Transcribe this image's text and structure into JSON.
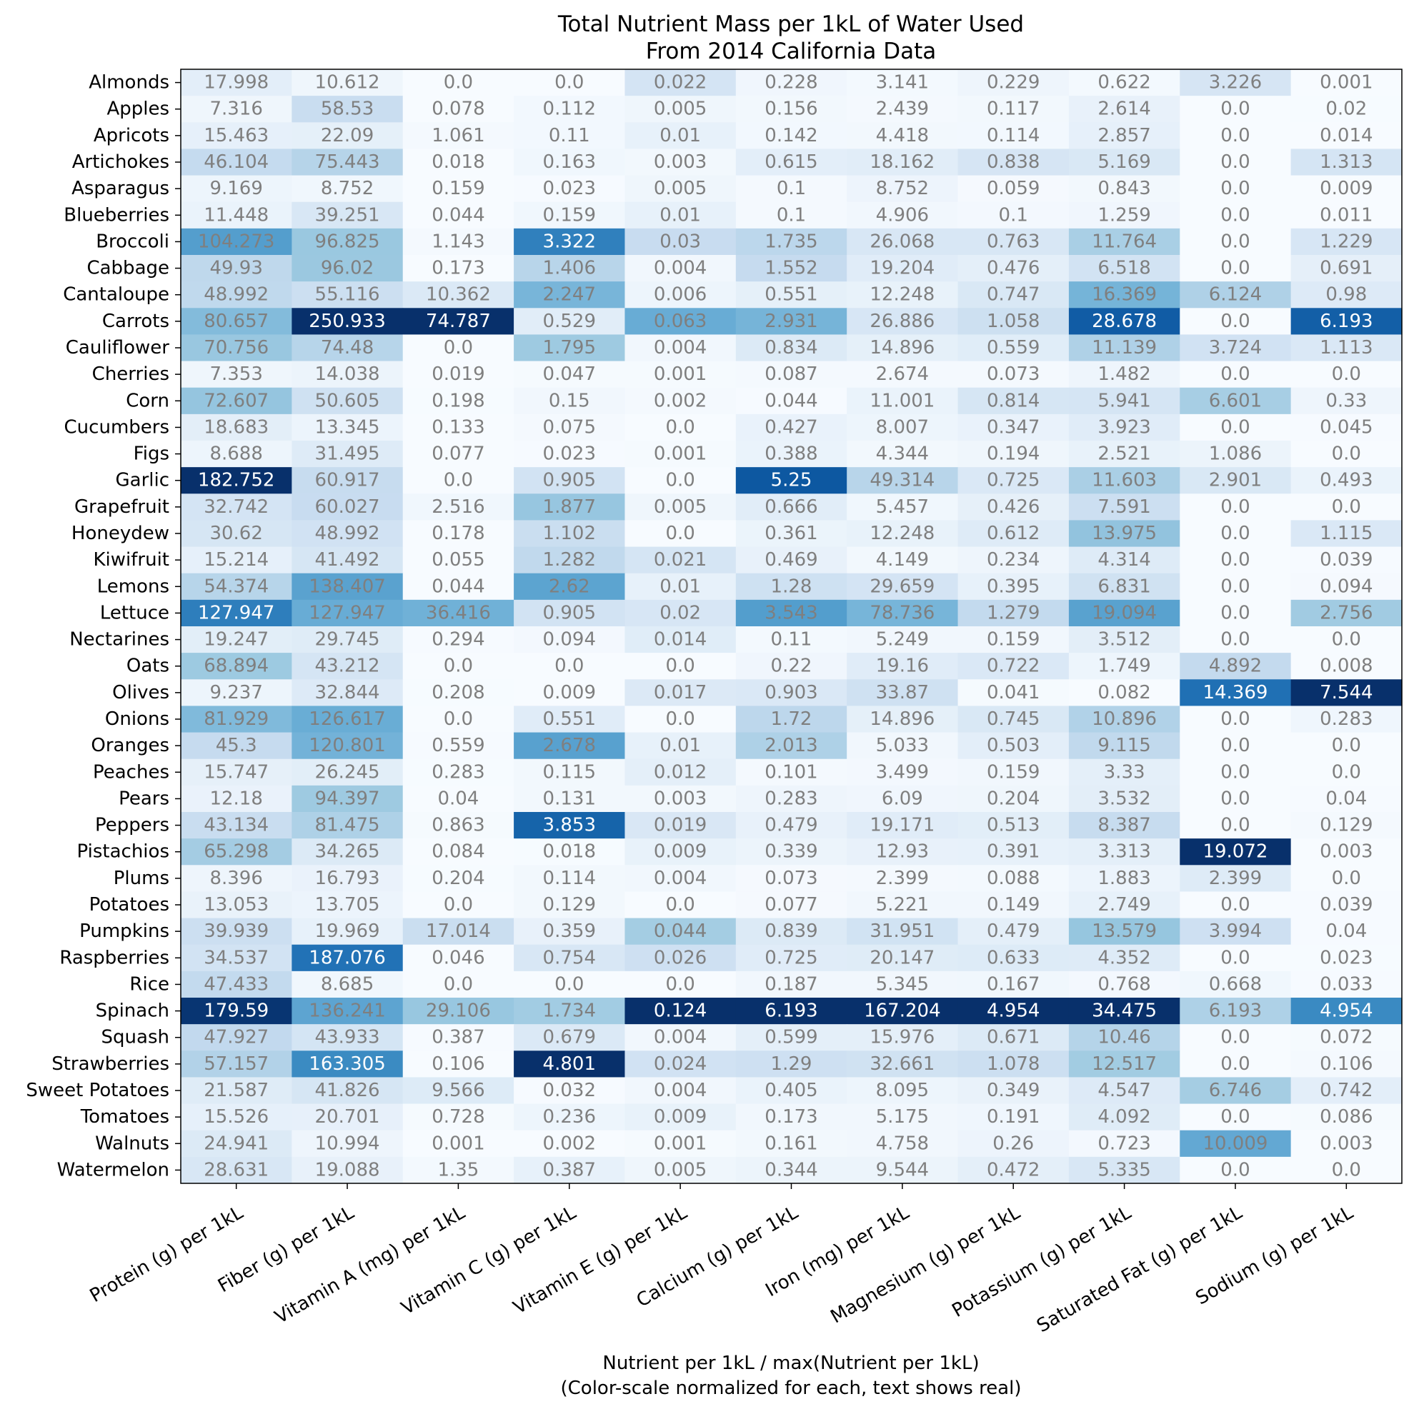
{
  "chart_data": {
    "type": "heatmap",
    "title": "Total Nutrient Mass per 1kL of Water Used",
    "subtitle": "From 2014 California Data",
    "xlabel": "Nutrient per 1kL / max(Nutrient per 1kL)",
    "xlabel_note": "(Color-scale normalized for each, text shows real)",
    "colormap": "Blues",
    "normalization": "per-column",
    "x_categories": [
      "Protein (g) per 1kL",
      "Fiber (g) per 1kL",
      "Vitamin A (mg) per 1kL",
      "Vitamin C (g) per 1kL",
      "Vitamin E (g) per 1kL",
      "Calcium (g) per 1kL",
      "Iron (mg) per 1kL",
      "Magnesium (g) per 1kL",
      "Potassium (g) per 1kL",
      "Saturated Fat (g) per 1kL",
      "Sodium (g) per 1kL"
    ],
    "y_categories": [
      "Almonds",
      "Apples",
      "Apricots",
      "Artichokes",
      "Asparagus",
      "Blueberries",
      "Broccoli",
      "Cabbage",
      "Cantaloupe",
      "Carrots",
      "Cauliflower",
      "Cherries",
      "Corn",
      "Cucumbers",
      "Figs",
      "Garlic",
      "Grapefruit",
      "Honeydew",
      "Kiwifruit",
      "Lemons",
      "Lettuce",
      "Nectarines",
      "Oats",
      "Olives",
      "Onions",
      "Oranges",
      "Peaches",
      "Pears",
      "Peppers",
      "Pistachios",
      "Plums",
      "Potatoes",
      "Pumpkins",
      "Raspberries",
      "Rice",
      "Spinach",
      "Squash",
      "Strawberries",
      "Sweet Potatoes",
      "Tomatoes",
      "Walnuts",
      "Watermelon"
    ],
    "values": [
      [
        "17.998",
        "10.612",
        "0.0",
        "0.0",
        "0.022",
        "0.228",
        "3.141",
        "0.229",
        "0.622",
        "3.226",
        "0.001"
      ],
      [
        "7.316",
        "58.53",
        "0.078",
        "0.112",
        "0.005",
        "0.156",
        "2.439",
        "0.117",
        "2.614",
        "0.0",
        "0.02"
      ],
      [
        "15.463",
        "22.09",
        "1.061",
        "0.11",
        "0.01",
        "0.142",
        "4.418",
        "0.114",
        "2.857",
        "0.0",
        "0.014"
      ],
      [
        "46.104",
        "75.443",
        "0.018",
        "0.163",
        "0.003",
        "0.615",
        "18.162",
        "0.838",
        "5.169",
        "0.0",
        "1.313"
      ],
      [
        "9.169",
        "8.752",
        "0.159",
        "0.023",
        "0.005",
        "0.1",
        "8.752",
        "0.059",
        "0.843",
        "0.0",
        "0.009"
      ],
      [
        "11.448",
        "39.251",
        "0.044",
        "0.159",
        "0.01",
        "0.1",
        "4.906",
        "0.1",
        "1.259",
        "0.0",
        "0.011"
      ],
      [
        "104.273",
        "96.825",
        "1.143",
        "3.322",
        "0.03",
        "1.735",
        "26.068",
        "0.763",
        "11.764",
        "0.0",
        "1.229"
      ],
      [
        "49.93",
        "96.02",
        "0.173",
        "1.406",
        "0.004",
        "1.552",
        "19.204",
        "0.476",
        "6.518",
        "0.0",
        "0.691"
      ],
      [
        "48.992",
        "55.116",
        "10.362",
        "2.247",
        "0.006",
        "0.551",
        "12.248",
        "0.747",
        "16.369",
        "6.124",
        "0.98"
      ],
      [
        "80.657",
        "250.933",
        "74.787",
        "0.529",
        "0.063",
        "2.931",
        "26.886",
        "1.058",
        "28.678",
        "0.0",
        "6.193"
      ],
      [
        "70.756",
        "74.48",
        "0.0",
        "1.795",
        "0.004",
        "0.834",
        "14.896",
        "0.559",
        "11.139",
        "3.724",
        "1.113"
      ],
      [
        "7.353",
        "14.038",
        "0.019",
        "0.047",
        "0.001",
        "0.087",
        "2.674",
        "0.073",
        "1.482",
        "0.0",
        "0.0"
      ],
      [
        "72.607",
        "50.605",
        "0.198",
        "0.15",
        "0.002",
        "0.044",
        "11.001",
        "0.814",
        "5.941",
        "6.601",
        "0.33"
      ],
      [
        "18.683",
        "13.345",
        "0.133",
        "0.075",
        "0.0",
        "0.427",
        "8.007",
        "0.347",
        "3.923",
        "0.0",
        "0.045"
      ],
      [
        "8.688",
        "31.495",
        "0.077",
        "0.023",
        "0.001",
        "0.388",
        "4.344",
        "0.194",
        "2.521",
        "1.086",
        "0.0"
      ],
      [
        "182.752",
        "60.917",
        "0.0",
        "0.905",
        "0.0",
        "5.25",
        "49.314",
        "0.725",
        "11.603",
        "2.901",
        "0.493"
      ],
      [
        "32.742",
        "60.027",
        "2.516",
        "1.877",
        "0.005",
        "0.666",
        "5.457",
        "0.426",
        "7.591",
        "0.0",
        "0.0"
      ],
      [
        "30.62",
        "48.992",
        "0.178",
        "1.102",
        "0.0",
        "0.361",
        "12.248",
        "0.612",
        "13.975",
        "0.0",
        "1.115"
      ],
      [
        "15.214",
        "41.492",
        "0.055",
        "1.282",
        "0.021",
        "0.469",
        "4.149",
        "0.234",
        "4.314",
        "0.0",
        "0.039"
      ],
      [
        "54.374",
        "138.407",
        "0.044",
        "2.62",
        "0.01",
        "1.28",
        "29.659",
        "0.395",
        "6.831",
        "0.0",
        "0.094"
      ],
      [
        "127.947",
        "127.947",
        "36.416",
        "0.905",
        "0.02",
        "3.543",
        "78.736",
        "1.279",
        "19.094",
        "0.0",
        "2.756"
      ],
      [
        "19.247",
        "29.745",
        "0.294",
        "0.094",
        "0.014",
        "0.11",
        "5.249",
        "0.159",
        "3.512",
        "0.0",
        "0.0"
      ],
      [
        "68.894",
        "43.212",
        "0.0",
        "0.0",
        "0.0",
        "0.22",
        "19.16",
        "0.722",
        "1.749",
        "4.892",
        "0.008"
      ],
      [
        "9.237",
        "32.844",
        "0.208",
        "0.009",
        "0.017",
        "0.903",
        "33.87",
        "0.041",
        "0.082",
        "14.369",
        "7.544"
      ],
      [
        "81.929",
        "126.617",
        "0.0",
        "0.551",
        "0.0",
        "1.72",
        "14.896",
        "0.745",
        "10.896",
        "0.0",
        "0.283"
      ],
      [
        "45.3",
        "120.801",
        "0.559",
        "2.678",
        "0.01",
        "2.013",
        "5.033",
        "0.503",
        "9.115",
        "0.0",
        "0.0"
      ],
      [
        "15.747",
        "26.245",
        "0.283",
        "0.115",
        "0.012",
        "0.101",
        "3.499",
        "0.159",
        "3.33",
        "0.0",
        "0.0"
      ],
      [
        "12.18",
        "94.397",
        "0.04",
        "0.131",
        "0.003",
        "0.283",
        "6.09",
        "0.204",
        "3.532",
        "0.0",
        "0.04"
      ],
      [
        "43.134",
        "81.475",
        "0.863",
        "3.853",
        "0.019",
        "0.479",
        "19.171",
        "0.513",
        "8.387",
        "0.0",
        "0.129"
      ],
      [
        "65.298",
        "34.265",
        "0.084",
        "0.018",
        "0.009",
        "0.339",
        "12.93",
        "0.391",
        "3.313",
        "19.072",
        "0.003"
      ],
      [
        "8.396",
        "16.793",
        "0.204",
        "0.114",
        "0.004",
        "0.073",
        "2.399",
        "0.088",
        "1.883",
        "2.399",
        "0.0"
      ],
      [
        "13.053",
        "13.705",
        "0.0",
        "0.129",
        "0.0",
        "0.077",
        "5.221",
        "0.149",
        "2.749",
        "0.0",
        "0.039"
      ],
      [
        "39.939",
        "19.969",
        "17.014",
        "0.359",
        "0.044",
        "0.839",
        "31.951",
        "0.479",
        "13.579",
        "3.994",
        "0.04"
      ],
      [
        "34.537",
        "187.076",
        "0.046",
        "0.754",
        "0.026",
        "0.725",
        "20.147",
        "0.633",
        "4.352",
        "0.0",
        "0.023"
      ],
      [
        "47.433",
        "8.685",
        "0.0",
        "0.0",
        "0.0",
        "0.187",
        "5.345",
        "0.167",
        "0.768",
        "0.668",
        "0.033"
      ],
      [
        "179.59",
        "136.241",
        "29.106",
        "1.734",
        "0.124",
        "6.193",
        "167.204",
        "4.954",
        "34.475",
        "6.193",
        "4.954"
      ],
      [
        "47.927",
        "43.933",
        "0.387",
        "0.679",
        "0.004",
        "0.599",
        "15.976",
        "0.671",
        "10.46",
        "0.0",
        "0.072"
      ],
      [
        "57.157",
        "163.305",
        "0.106",
        "4.801",
        "0.024",
        "1.29",
        "32.661",
        "1.078",
        "12.517",
        "0.0",
        "0.106"
      ],
      [
        "21.587",
        "41.826",
        "9.566",
        "0.032",
        "0.004",
        "0.405",
        "8.095",
        "0.349",
        "4.547",
        "6.746",
        "0.742"
      ],
      [
        "15.526",
        "20.701",
        "0.728",
        "0.236",
        "0.009",
        "0.173",
        "5.175",
        "0.191",
        "4.092",
        "0.0",
        "0.086"
      ],
      [
        "24.941",
        "10.994",
        "0.001",
        "0.002",
        "0.001",
        "0.161",
        "4.758",
        "0.26",
        "0.723",
        "10.009",
        "0.003"
      ],
      [
        "28.631",
        "19.088",
        "1.35",
        "0.387",
        "0.005",
        "0.344",
        "9.544",
        "0.472",
        "5.335",
        "0.0",
        "0.0"
      ]
    ],
    "text_colors": {
      "light": "#ffffff",
      "dark": "#7f7f7f"
    }
  }
}
